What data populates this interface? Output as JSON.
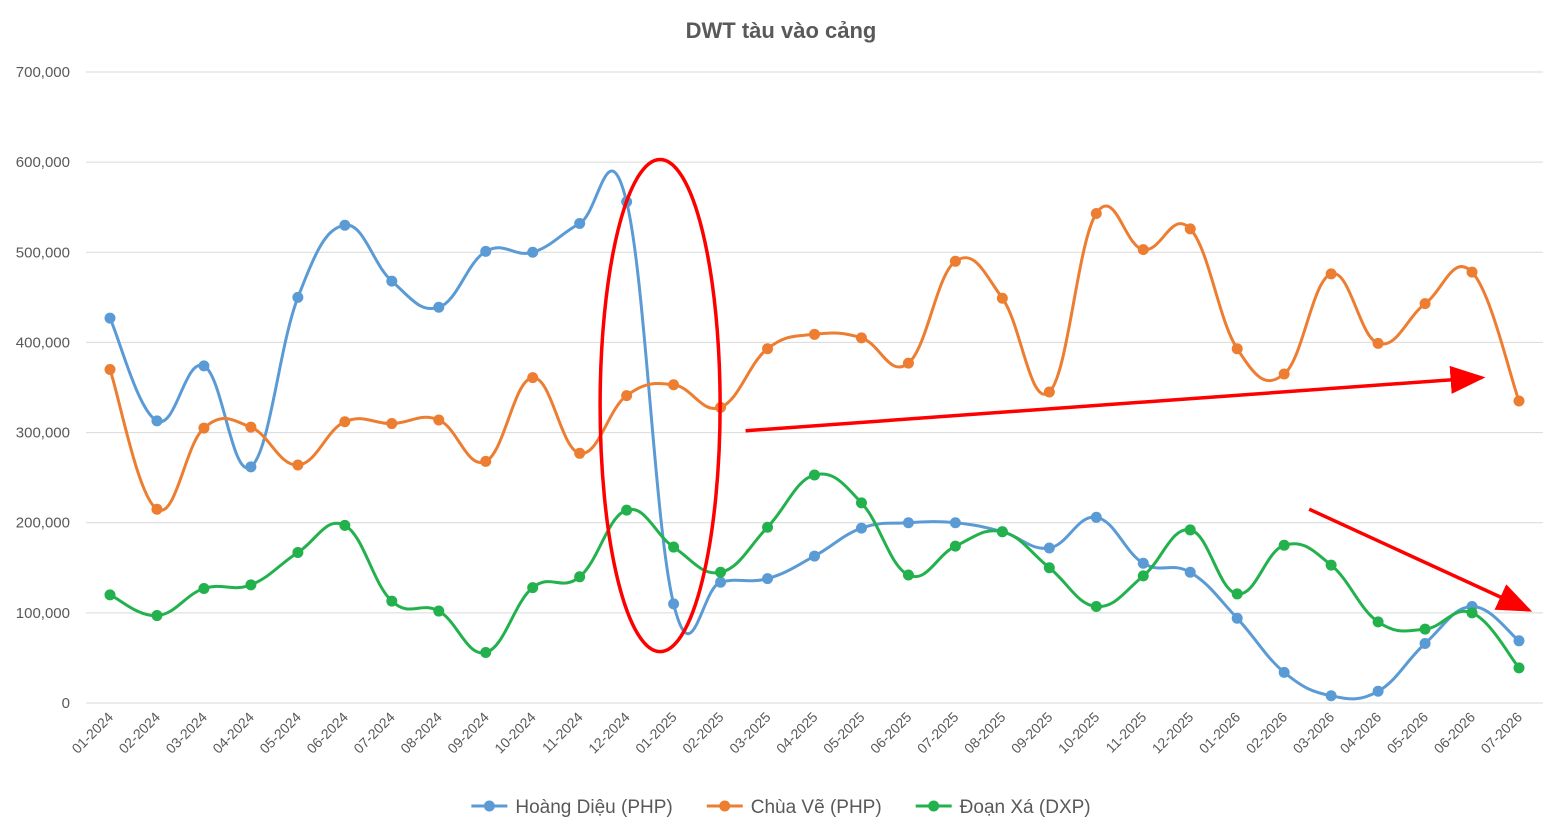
{
  "chart_data": {
    "type": "line",
    "title": "DWT tàu vào cảng",
    "xlabel": "",
    "ylabel": "",
    "ylim": [
      0,
      700000
    ],
    "yticks": [
      0,
      100000,
      200000,
      300000,
      400000,
      500000,
      600000,
      700000
    ],
    "ytick_labels": [
      "0",
      "100,000",
      "200,000",
      "300,000",
      "400,000",
      "500,000",
      "600,000",
      "700,000"
    ],
    "grid": true,
    "legend": "bottom",
    "smooth": true,
    "categories": [
      "01-2024",
      "02-2024",
      "03-2024",
      "04-2024",
      "05-2024",
      "06-2024",
      "07-2024",
      "08-2024",
      "09-2024",
      "10-2024",
      "11-2024",
      "12-2024",
      "01-2025",
      "02-2025",
      "03-2025",
      "04-2025",
      "05-2025",
      "06-2025",
      "07-2025",
      "08-2025",
      "09-2025",
      "10-2025",
      "11-2025",
      "12-2025",
      "01-2026",
      "02-2026",
      "03-2026",
      "04-2026",
      "05-2026",
      "06-2026",
      "07-2026"
    ],
    "series": [
      {
        "name": "Hoàng Diệu (PHP)",
        "color": "#5b9bd5",
        "values": [
          427000,
          313000,
          374000,
          262000,
          450000,
          530000,
          468000,
          439000,
          501000,
          500000,
          532000,
          556000,
          110000,
          134000,
          138000,
          163000,
          194000,
          200000,
          200000,
          190000,
          172000,
          206000,
          155000,
          145000,
          94000,
          34000,
          8000,
          13000,
          66000,
          107000,
          69000
        ]
      },
      {
        "name": "Chùa Vẽ (PHP)",
        "color": "#ed7d31",
        "values": [
          370000,
          215000,
          305000,
          306000,
          264000,
          312000,
          310000,
          314000,
          268000,
          361000,
          277000,
          341000,
          353000,
          328000,
          393000,
          409000,
          405000,
          377000,
          490000,
          449000,
          345000,
          543000,
          503000,
          526000,
          393000,
          365000,
          476000,
          399000,
          443000,
          478000,
          335000
        ]
      },
      {
        "name": "Đoạn Xá (DXP)",
        "color": "#22b14c",
        "values": [
          120000,
          97000,
          127000,
          131000,
          167000,
          197000,
          113000,
          102000,
          56000,
          128000,
          140000,
          214000,
          173000,
          145000,
          195000,
          253000,
          222000,
          142000,
          174000,
          190000,
          150000,
          107000,
          141000,
          192000,
          121000,
          175000,
          153000,
          90000,
          82000,
          100000,
          39000
        ]
      }
    ],
    "annotations": [
      {
        "type": "ellipse",
        "color": "#ff0000",
        "around_category": "12-2024 / 01-2025",
        "y_range": [
          57000,
          603000
        ]
      },
      {
        "type": "arrow",
        "color": "#ff0000",
        "from": {
          "x": "02-2025",
          "y": 302000
        },
        "to": {
          "x": "06-2026",
          "y": 361000
        }
      },
      {
        "type": "arrow",
        "color": "#ff0000",
        "from": {
          "x": "02-2026",
          "y": 215000
        },
        "to": {
          "x": "07-2026",
          "y": 103000
        }
      }
    ]
  }
}
